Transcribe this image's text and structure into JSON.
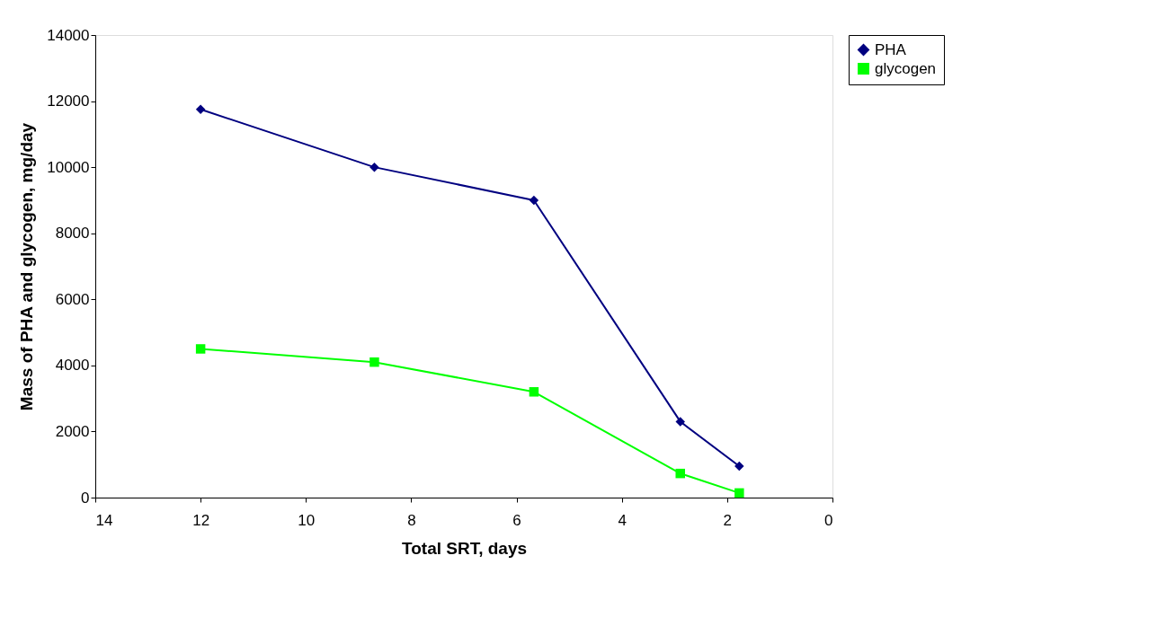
{
  "chart_data": {
    "type": "line",
    "xlabel": "Total SRT, days",
    "ylabel": "Mass of PHA and glycogen, mg/day",
    "xlim": [
      14,
      0
    ],
    "xticks": [
      14,
      12,
      10,
      8,
      6,
      4,
      2,
      0
    ],
    "ylim": [
      0,
      14000
    ],
    "yticks": [
      0,
      2000,
      4000,
      6000,
      8000,
      10000,
      12000,
      14000
    ],
    "grid": false,
    "legend": "right",
    "series": [
      {
        "name": "PHA",
        "color": "#000080",
        "marker": "diamond",
        "x": [
          12,
          8.7,
          5.67,
          2.89,
          1.77
        ],
        "values": [
          11750,
          10000,
          9000,
          2300,
          950
        ]
      },
      {
        "name": "glycogen",
        "color": "#00ff00",
        "marker": "square",
        "x": [
          12,
          8.7,
          5.67,
          2.89,
          1.77
        ],
        "values": [
          4500,
          4100,
          3200,
          730,
          140
        ]
      }
    ]
  }
}
